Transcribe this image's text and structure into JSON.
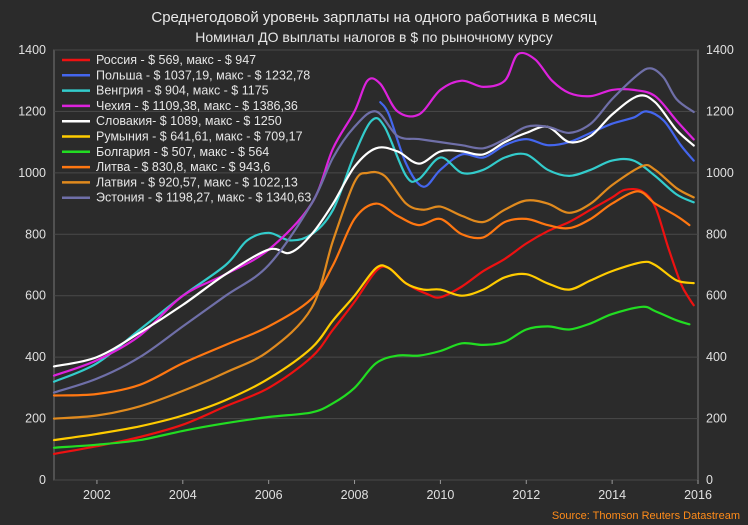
{
  "chart_data": {
    "type": "line",
    "title": "Среднегодовой уровень зарплаты на одного работника в месяц",
    "subtitle": "Номинал ДО выплаты налогов в $ по рыночному курсу",
    "source": "Source: Thomson Reuters Datastream",
    "xlim": [
      2001,
      2016
    ],
    "ylim": [
      0,
      1400
    ],
    "x_ticks": [
      2002,
      2004,
      2006,
      2008,
      2010,
      2012,
      2014,
      2016
    ],
    "y_ticks": [
      0,
      200,
      400,
      600,
      800,
      1000,
      1200,
      1400
    ],
    "grid": true,
    "legend_position": "top-left",
    "series": [
      {
        "name": "Россия - $ 569, макс - $ 947",
        "color": "#ee1111",
        "points": [
          [
            2001,
            85
          ],
          [
            2002,
            110
          ],
          [
            2003,
            140
          ],
          [
            2004,
            180
          ],
          [
            2005,
            240
          ],
          [
            2006,
            300
          ],
          [
            2007,
            400
          ],
          [
            2007.5,
            490
          ],
          [
            2008,
            580
          ],
          [
            2008.5,
            680
          ],
          [
            2008.8,
            690
          ],
          [
            2009.2,
            640
          ],
          [
            2009.7,
            605
          ],
          [
            2010,
            595
          ],
          [
            2010.5,
            630
          ],
          [
            2011,
            680
          ],
          [
            2011.5,
            720
          ],
          [
            2012,
            770
          ],
          [
            2012.5,
            810
          ],
          [
            2013,
            840
          ],
          [
            2013.5,
            880
          ],
          [
            2014,
            920
          ],
          [
            2014.3,
            945
          ],
          [
            2014.7,
            940
          ],
          [
            2015,
            890
          ],
          [
            2015.3,
            760
          ],
          [
            2015.6,
            640
          ],
          [
            2015.8,
            590
          ],
          [
            2015.9,
            569
          ]
        ]
      },
      {
        "name": "Польша - $ 1037,19, макс - $ 1232,78",
        "color": "#4466ee",
        "points": [
          [
            2008.6,
            1230
          ],
          [
            2008.8,
            1190
          ],
          [
            2009.2,
            1030
          ],
          [
            2009.6,
            955
          ],
          [
            2010,
            1010
          ],
          [
            2010.5,
            1060
          ],
          [
            2011,
            1050
          ],
          [
            2011.5,
            1090
          ],
          [
            2012,
            1110
          ],
          [
            2012.5,
            1090
          ],
          [
            2013,
            1100
          ],
          [
            2013.5,
            1130
          ],
          [
            2014,
            1160
          ],
          [
            2014.5,
            1180
          ],
          [
            2014.8,
            1200
          ],
          [
            2015.2,
            1170
          ],
          [
            2015.6,
            1090
          ],
          [
            2015.9,
            1040
          ]
        ]
      },
      {
        "name": "Венгрия - $ 904, макс - $ 1175",
        "color": "#33cccc",
        "points": [
          [
            2001,
            320
          ],
          [
            2002,
            380
          ],
          [
            2003,
            490
          ],
          [
            2004,
            600
          ],
          [
            2005,
            700
          ],
          [
            2005.5,
            780
          ],
          [
            2006,
            805
          ],
          [
            2006.5,
            780
          ],
          [
            2007,
            800
          ],
          [
            2007.5,
            880
          ],
          [
            2008,
            1060
          ],
          [
            2008.4,
            1170
          ],
          [
            2008.7,
            1150
          ],
          [
            2009.2,
            990
          ],
          [
            2009.5,
            980
          ],
          [
            2010,
            1050
          ],
          [
            2010.5,
            1000
          ],
          [
            2011,
            1010
          ],
          [
            2011.5,
            1050
          ],
          [
            2012,
            1060
          ],
          [
            2012.5,
            1010
          ],
          [
            2013,
            990
          ],
          [
            2013.5,
            1010
          ],
          [
            2014,
            1040
          ],
          [
            2014.5,
            1040
          ],
          [
            2015,
            990
          ],
          [
            2015.5,
            930
          ],
          [
            2015.9,
            904
          ]
        ]
      },
      {
        "name": "Чехия - $ 1109,38, макс - $ 1386,36",
        "color": "#dd22dd",
        "points": [
          [
            2001,
            340
          ],
          [
            2002,
            390
          ],
          [
            2003,
            470
          ],
          [
            2004,
            600
          ],
          [
            2005,
            670
          ],
          [
            2006,
            750
          ],
          [
            2007,
            900
          ],
          [
            2007.5,
            1080
          ],
          [
            2008,
            1200
          ],
          [
            2008.3,
            1300
          ],
          [
            2008.6,
            1290
          ],
          [
            2009,
            1200
          ],
          [
            2009.5,
            1190
          ],
          [
            2010,
            1270
          ],
          [
            2010.5,
            1300
          ],
          [
            2011,
            1280
          ],
          [
            2011.5,
            1300
          ],
          [
            2011.8,
            1386
          ],
          [
            2012.2,
            1370
          ],
          [
            2012.6,
            1300
          ],
          [
            2013,
            1260
          ],
          [
            2013.5,
            1250
          ],
          [
            2014,
            1270
          ],
          [
            2014.5,
            1270
          ],
          [
            2015,
            1250
          ],
          [
            2015.5,
            1170
          ],
          [
            2015.9,
            1109
          ]
        ]
      },
      {
        "name": "Словакия- $ 1089, макс - $ 1250",
        "color": "#ffffff",
        "points": [
          [
            2001,
            370
          ],
          [
            2002,
            400
          ],
          [
            2003,
            480
          ],
          [
            2004,
            570
          ],
          [
            2005,
            670
          ],
          [
            2006,
            750
          ],
          [
            2006.5,
            740
          ],
          [
            2007,
            800
          ],
          [
            2007.5,
            900
          ],
          [
            2008,
            1020
          ],
          [
            2008.5,
            1080
          ],
          [
            2009,
            1070
          ],
          [
            2009.5,
            1030
          ],
          [
            2010,
            1070
          ],
          [
            2010.5,
            1070
          ],
          [
            2011,
            1060
          ],
          [
            2011.5,
            1100
          ],
          [
            2012,
            1130
          ],
          [
            2012.5,
            1150
          ],
          [
            2013,
            1100
          ],
          [
            2013.5,
            1120
          ],
          [
            2014,
            1190
          ],
          [
            2014.6,
            1250
          ],
          [
            2015,
            1230
          ],
          [
            2015.5,
            1140
          ],
          [
            2015.9,
            1089
          ]
        ]
      },
      {
        "name": "Румыния - $ 641,61, макс - $ 709,17",
        "color": "#ffcc00",
        "points": [
          [
            2001,
            130
          ],
          [
            2002,
            150
          ],
          [
            2003,
            175
          ],
          [
            2004,
            210
          ],
          [
            2005,
            260
          ],
          [
            2006,
            330
          ],
          [
            2007,
            430
          ],
          [
            2007.5,
            520
          ],
          [
            2008,
            600
          ],
          [
            2008.5,
            690
          ],
          [
            2008.8,
            690
          ],
          [
            2009.2,
            640
          ],
          [
            2009.6,
            620
          ],
          [
            2010,
            620
          ],
          [
            2010.5,
            600
          ],
          [
            2011,
            620
          ],
          [
            2011.5,
            660
          ],
          [
            2012,
            670
          ],
          [
            2012.5,
            640
          ],
          [
            2013,
            620
          ],
          [
            2013.5,
            650
          ],
          [
            2014,
            680
          ],
          [
            2014.7,
            709
          ],
          [
            2015,
            700
          ],
          [
            2015.5,
            650
          ],
          [
            2015.9,
            641
          ]
        ]
      },
      {
        "name": "Болгария - $ 507, макс - $ 564",
        "color": "#22dd22",
        "points": [
          [
            2001,
            105
          ],
          [
            2002,
            115
          ],
          [
            2003,
            130
          ],
          [
            2004,
            160
          ],
          [
            2005,
            185
          ],
          [
            2006,
            205
          ],
          [
            2007,
            220
          ],
          [
            2007.5,
            250
          ],
          [
            2008,
            300
          ],
          [
            2008.5,
            380
          ],
          [
            2009,
            405
          ],
          [
            2009.5,
            405
          ],
          [
            2010,
            420
          ],
          [
            2010.5,
            445
          ],
          [
            2011,
            440
          ],
          [
            2011.5,
            450
          ],
          [
            2012,
            490
          ],
          [
            2012.5,
            500
          ],
          [
            2013,
            490
          ],
          [
            2013.5,
            510
          ],
          [
            2014,
            540
          ],
          [
            2014.7,
            564
          ],
          [
            2015,
            550
          ],
          [
            2015.5,
            520
          ],
          [
            2015.8,
            507
          ]
        ]
      },
      {
        "name": "Литва  - $ 830,8, макс - $ 943,6",
        "color": "#ff7711",
        "points": [
          [
            2001,
            275
          ],
          [
            2002,
            280
          ],
          [
            2003,
            310
          ],
          [
            2004,
            380
          ],
          [
            2005,
            440
          ],
          [
            2006,
            500
          ],
          [
            2007,
            590
          ],
          [
            2007.5,
            700
          ],
          [
            2008,
            850
          ],
          [
            2008.5,
            900
          ],
          [
            2009,
            860
          ],
          [
            2009.5,
            830
          ],
          [
            2010,
            850
          ],
          [
            2010.5,
            800
          ],
          [
            2011,
            790
          ],
          [
            2011.5,
            840
          ],
          [
            2012,
            850
          ],
          [
            2012.5,
            830
          ],
          [
            2013,
            820
          ],
          [
            2013.5,
            850
          ],
          [
            2014,
            900
          ],
          [
            2014.6,
            940
          ],
          [
            2015,
            900
          ],
          [
            2015.5,
            860
          ],
          [
            2015.8,
            830
          ]
        ]
      },
      {
        "name": "Латвия  - $ 920,57, макс - $ 1022,13",
        "color": "#e08a1e",
        "points": [
          [
            2001,
            200
          ],
          [
            2002,
            210
          ],
          [
            2003,
            240
          ],
          [
            2004,
            290
          ],
          [
            2005,
            350
          ],
          [
            2006,
            420
          ],
          [
            2007,
            560
          ],
          [
            2007.5,
            780
          ],
          [
            2008,
            970
          ],
          [
            2008.3,
            1000
          ],
          [
            2008.7,
            990
          ],
          [
            2009.2,
            900
          ],
          [
            2009.6,
            880
          ],
          [
            2010,
            890
          ],
          [
            2010.5,
            860
          ],
          [
            2011,
            840
          ],
          [
            2011.5,
            880
          ],
          [
            2012,
            910
          ],
          [
            2012.5,
            900
          ],
          [
            2013,
            870
          ],
          [
            2013.5,
            900
          ],
          [
            2014,
            960
          ],
          [
            2014.7,
            1022
          ],
          [
            2015,
            1010
          ],
          [
            2015.5,
            950
          ],
          [
            2015.9,
            920
          ]
        ]
      },
      {
        "name": "Эстония - $ 1198,27, макс - $ 1340,63",
        "color": "#6f6fa8",
        "points": [
          [
            2001,
            285
          ],
          [
            2002,
            330
          ],
          [
            2003,
            400
          ],
          [
            2004,
            500
          ],
          [
            2005,
            600
          ],
          [
            2006,
            700
          ],
          [
            2007,
            900
          ],
          [
            2007.5,
            1050
          ],
          [
            2008,
            1150
          ],
          [
            2008.5,
            1200
          ],
          [
            2009,
            1120
          ],
          [
            2009.5,
            1110
          ],
          [
            2010,
            1100
          ],
          [
            2010.5,
            1090
          ],
          [
            2011,
            1080
          ],
          [
            2011.5,
            1110
          ],
          [
            2012,
            1150
          ],
          [
            2012.5,
            1150
          ],
          [
            2013,
            1130
          ],
          [
            2013.5,
            1160
          ],
          [
            2014,
            1240
          ],
          [
            2014.6,
            1320
          ],
          [
            2014.9,
            1340
          ],
          [
            2015.2,
            1310
          ],
          [
            2015.5,
            1240
          ],
          [
            2015.9,
            1198
          ]
        ]
      }
    ]
  }
}
